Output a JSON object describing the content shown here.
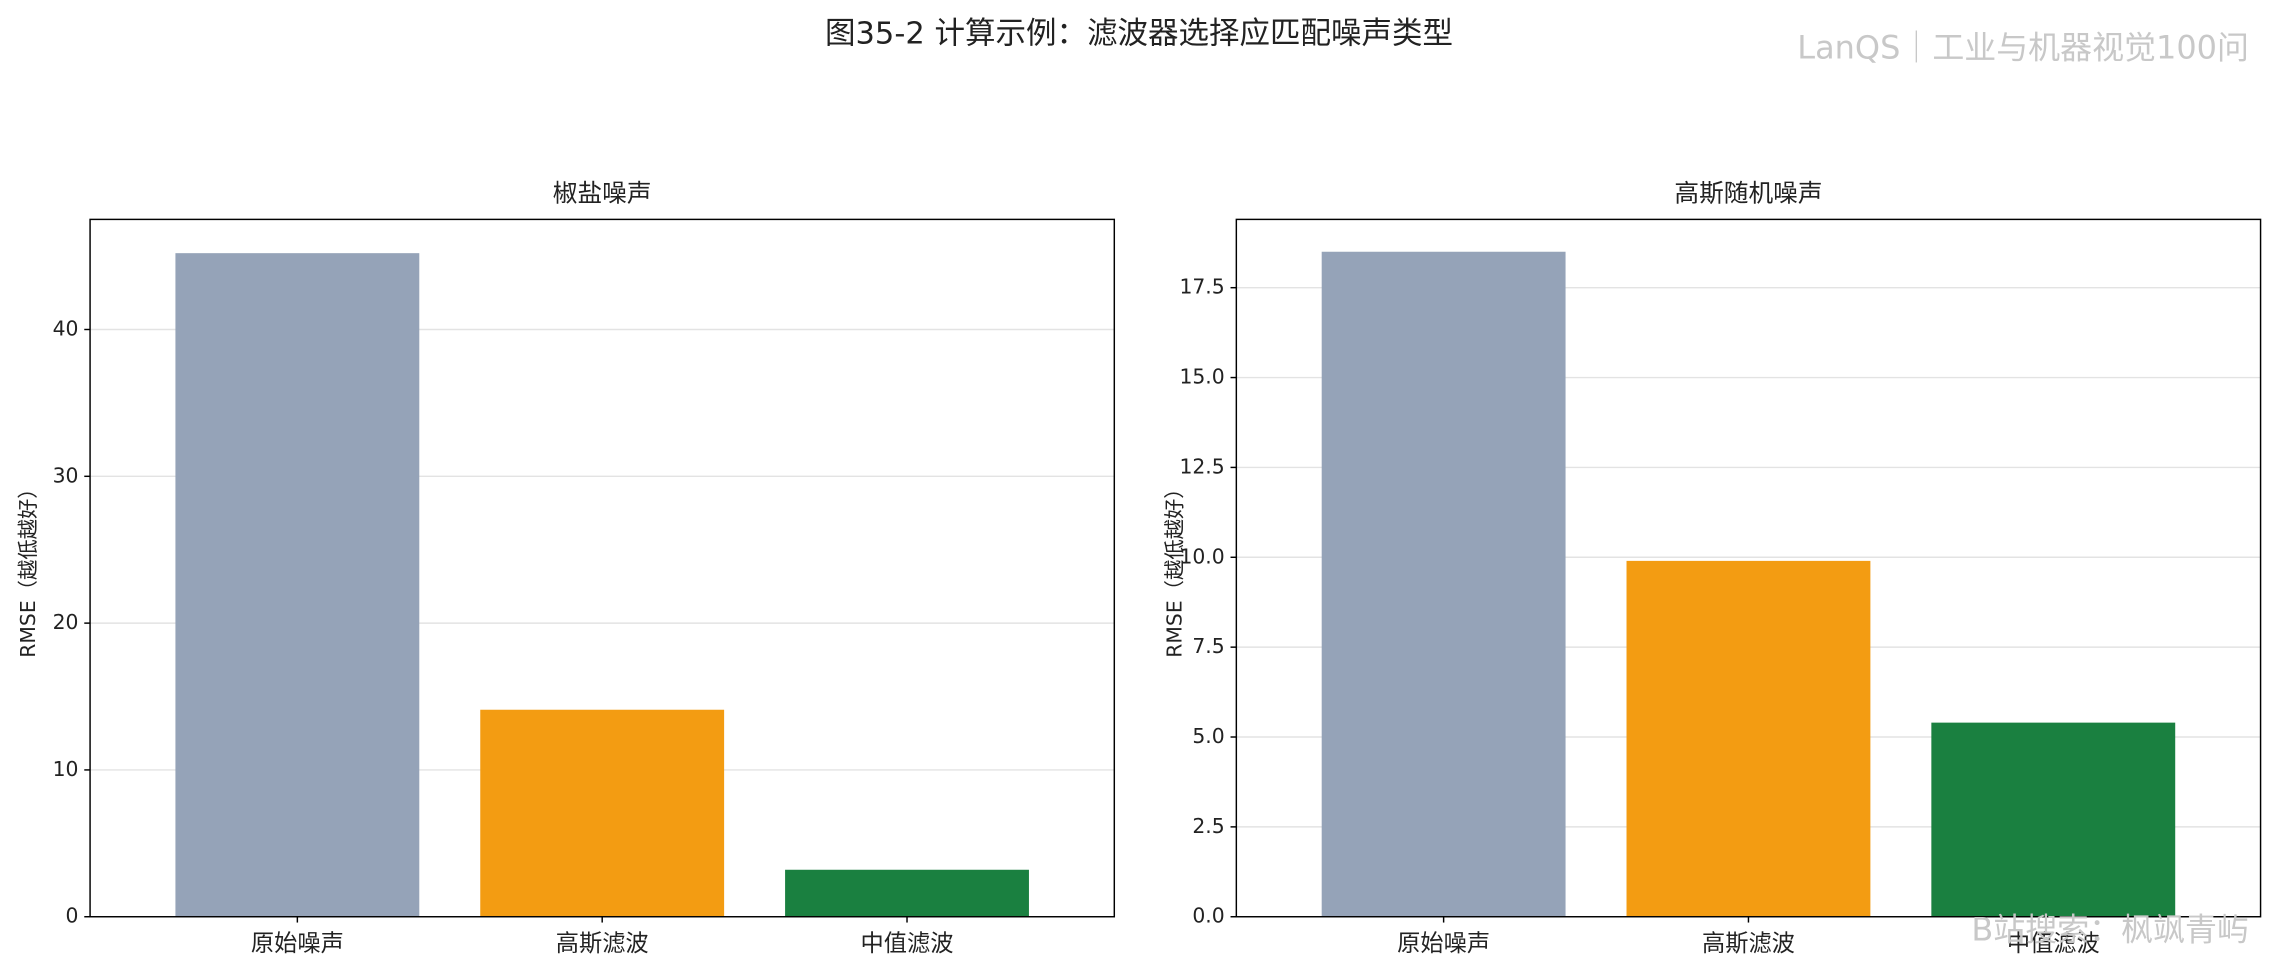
{
  "title": "图35-2 计算示例：滤波器选择应匹配噪声类型",
  "watermarks": [
    "LanQS｜工业与机器视觉100问",
    "B站搜索：枫飒青屿"
  ],
  "chart_data": [
    {
      "type": "bar",
      "title": "椒盐噪声",
      "ylabel": "RMSE（越低越好）",
      "categories": [
        "原始噪声",
        "高斯滤波",
        "中值滤波"
      ],
      "values": [
        45.2,
        14.1,
        3.2
      ],
      "colors": [
        "#95a3b8",
        "#f39c12",
        "#1a8040"
      ],
      "ylim": [
        0,
        47.5
      ],
      "yticks": [
        0,
        10,
        20,
        30,
        40
      ],
      "grid": true
    },
    {
      "type": "bar",
      "title": "高斯随机噪声",
      "ylabel": "RMSE（越低越好）",
      "categories": [
        "原始噪声",
        "高斯滤波",
        "中值滤波"
      ],
      "values": [
        18.5,
        9.9,
        5.4
      ],
      "colors": [
        "#95a3b8",
        "#f39c12",
        "#1a8040"
      ],
      "ylim": [
        0,
        19.4
      ],
      "yticks": [
        {
          "value": 0,
          "label": "0.0"
        },
        2.5,
        {
          "value": 5,
          "label": "5.0"
        },
        7.5,
        {
          "value": 10,
          "label": "10.0"
        },
        12.5,
        {
          "value": 15,
          "label": "15.0"
        },
        17.5
      ],
      "grid": true
    }
  ]
}
